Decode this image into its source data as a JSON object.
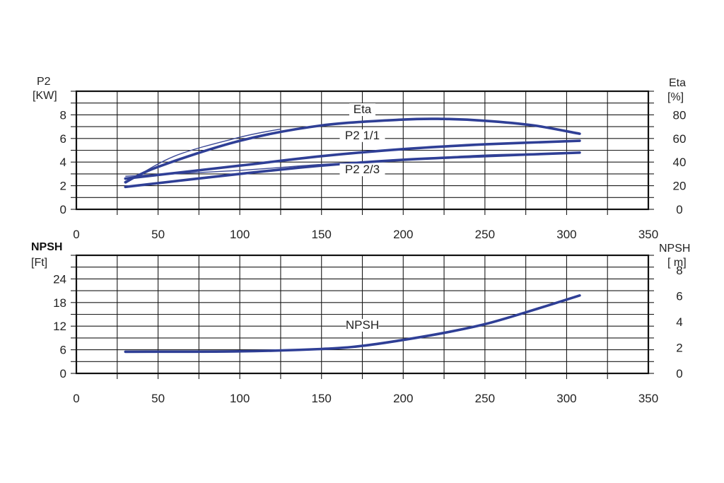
{
  "chart_data": [
    {
      "type": "line",
      "x_ticks": [
        "0",
        "50",
        "100",
        "150",
        "200",
        "250",
        "300",
        "350"
      ],
      "xlim": [
        0,
        350
      ],
      "left_axis": {
        "label_line1": "P2",
        "label_line2": "[KW]",
        "ylim": [
          0,
          10
        ],
        "ticks": [
          "0",
          "2",
          "4",
          "6",
          "8"
        ]
      },
      "right_axis": {
        "label_line1": "Eta",
        "label_line2": "[%]",
        "ylim": [
          0,
          100
        ],
        "ticks": [
          "0",
          "20",
          "40",
          "60",
          "80"
        ]
      },
      "grid": true,
      "series": [
        {
          "name": "Eta",
          "axis": "right",
          "color": "#2f3f96",
          "x": [
            30,
            50,
            100,
            150,
            200,
            225,
            250,
            280,
            308
          ],
          "y": [
            23,
            36,
            58,
            71,
            76,
            76.5,
            75,
            71,
            64
          ]
        },
        {
          "name": "P2 1/1",
          "axis": "left",
          "color": "#2f3f96",
          "x": [
            30,
            100,
            150,
            200,
            250,
            308
          ],
          "y": [
            2.6,
            3.7,
            4.5,
            5.1,
            5.5,
            5.8
          ]
        },
        {
          "name": "P2 2/3",
          "axis": "left",
          "color": "#2f3f96",
          "x": [
            30,
            100,
            150,
            200,
            250,
            308
          ],
          "y": [
            1.9,
            3.0,
            3.7,
            4.2,
            4.5,
            4.8
          ]
        }
      ],
      "thin_curves": [
        {
          "axis": "left",
          "x": [
            30,
            60,
            100,
            125
          ],
          "y": [
            2.2,
            4.5,
            6.1,
            6.8
          ]
        },
        {
          "axis": "left",
          "x": [
            30,
            100,
            150,
            200,
            250,
            308
          ],
          "y": [
            2.8,
            3.3,
            3.8,
            4.2,
            4.6,
            4.8
          ]
        }
      ],
      "annotations": [
        {
          "text": "Eta",
          "x": 175,
          "y": 8.2
        },
        {
          "text": "P2 1/1",
          "x": 175,
          "y": 6.0
        },
        {
          "text": "P2 2/3",
          "x": 175,
          "y": 3.1
        }
      ]
    },
    {
      "type": "line",
      "x_ticks": [
        "0",
        "50",
        "100",
        "150",
        "200",
        "250",
        "300",
        "350"
      ],
      "xlim": [
        0,
        350
      ],
      "left_axis": {
        "label_line1": "NPSH",
        "label_line2": "[Ft]",
        "ylim": [
          0,
          30
        ],
        "ticks": [
          "0",
          "6",
          "12",
          "18",
          "24"
        ]
      },
      "right_axis": {
        "label_line1": "NPSH",
        "label_line2": "[ m]",
        "ylim": [
          0,
          9.14
        ],
        "ticks": [
          "0",
          "2",
          "4",
          "6",
          "8"
        ]
      },
      "grid": true,
      "series": [
        {
          "name": "NPSH",
          "axis": "left",
          "color": "#2f3f96",
          "x": [
            30,
            100,
            150,
            175,
            200,
            225,
            250,
            275,
            308
          ],
          "y": [
            5.5,
            5.6,
            6.2,
            7.0,
            8.5,
            10.3,
            12.5,
            15.5,
            19.8
          ]
        }
      ],
      "annotations": [
        {
          "text": "NPSH",
          "x": 175,
          "y": 11.5
        }
      ]
    }
  ]
}
